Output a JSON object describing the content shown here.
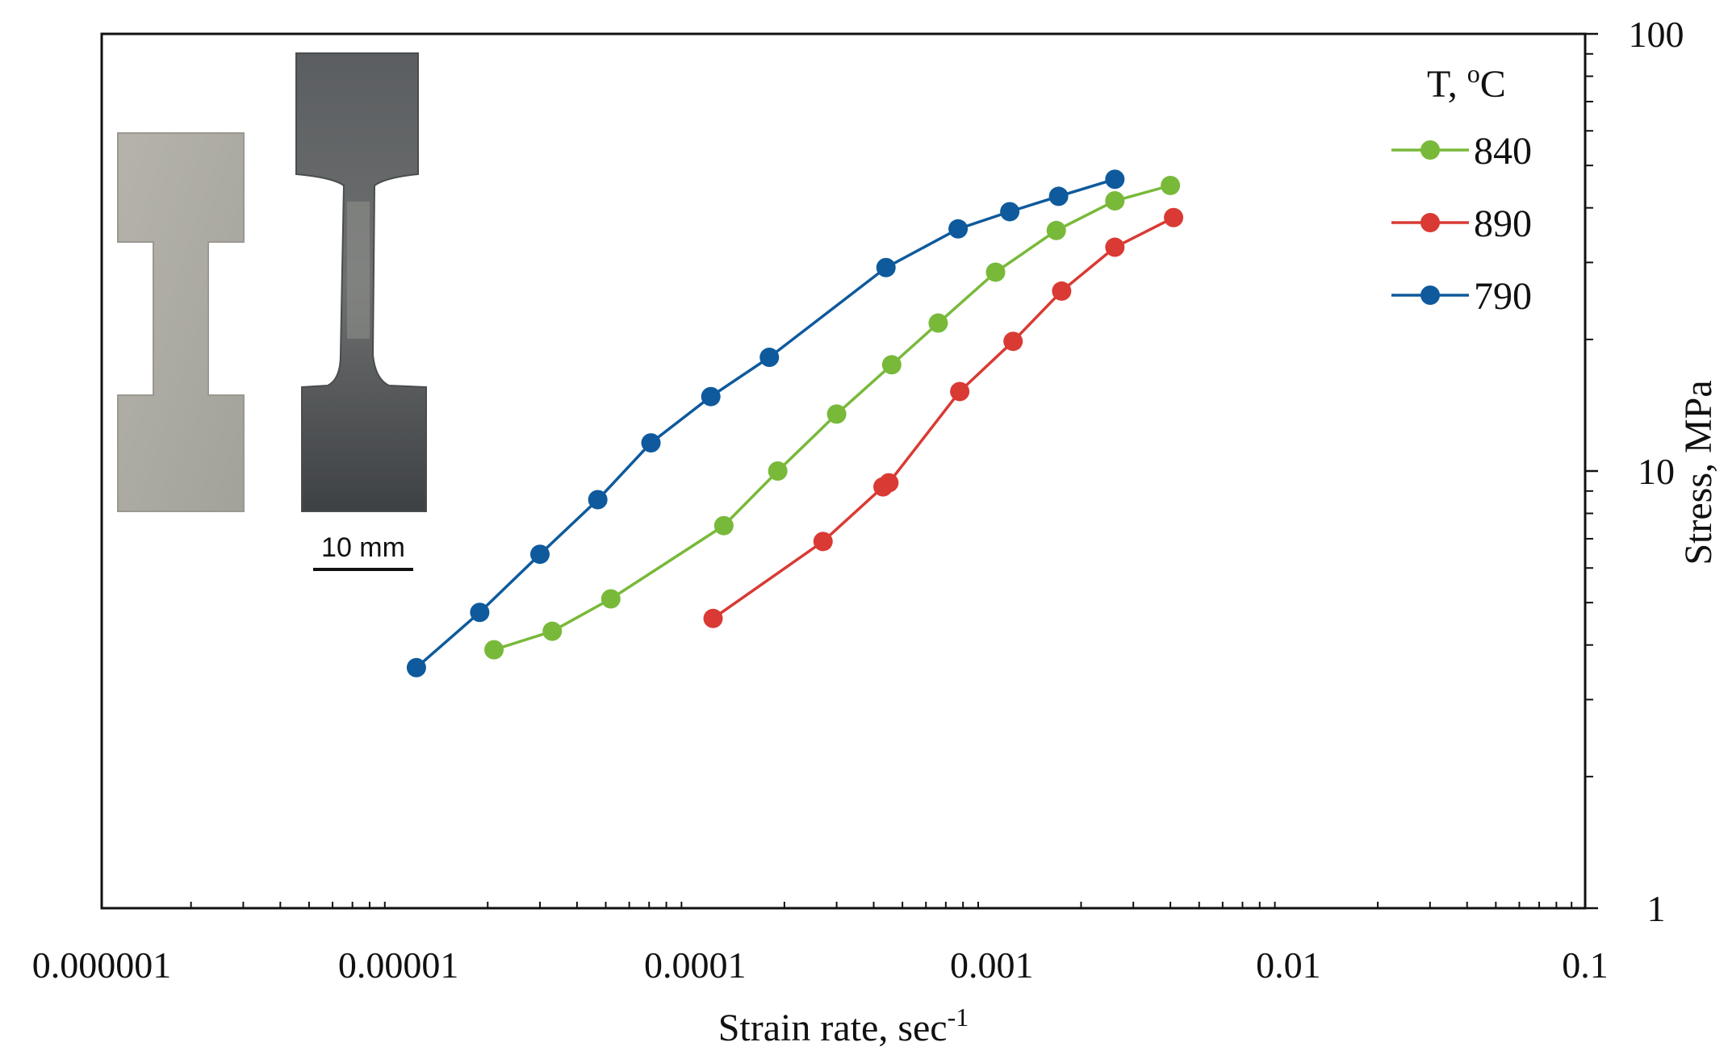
{
  "chart_data": {
    "type": "line",
    "title": "",
    "xlabel": "Strain rate, sec",
    "xlabel_superscript": "-1",
    "ylabel": "Stress, MPa",
    "x_scale": "log",
    "y_scale": "log",
    "xlim": [
      1e-06,
      0.1
    ],
    "ylim": [
      1,
      100
    ],
    "x_tick_labels": [
      "0.000001",
      "0.00001",
      "0.0001",
      "0.001",
      "0.01",
      "0.1"
    ],
    "y_tick_labels": [
      "1",
      "10",
      "100"
    ],
    "grid": false,
    "legend": {
      "title": "T, ",
      "title_superscript": "o",
      "title_unit": "C",
      "position": "top-right"
    },
    "inset": {
      "description_label": "10 mm",
      "position": "top-left"
    },
    "series": [
      {
        "name": "840",
        "color": "#79b93a",
        "points": [
          [
            2.1e-05,
            3.9
          ],
          [
            3.3e-05,
            4.3
          ],
          [
            5.2e-05,
            5.1
          ],
          [
            0.000125,
            7.5
          ],
          [
            0.00019,
            10.0
          ],
          [
            0.0003,
            13.5
          ],
          [
            0.00046,
            17.5
          ],
          [
            0.00066,
            21.8
          ],
          [
            0.00103,
            28.5
          ],
          [
            0.00165,
            35.5
          ],
          [
            0.0026,
            41.5
          ],
          [
            0.004,
            45.0
          ]
        ]
      },
      {
        "name": "890",
        "color": "#d93a33",
        "points": [
          [
            0.000115,
            4.6
          ],
          [
            0.00027,
            6.9
          ],
          [
            0.00043,
            9.2
          ],
          [
            0.00045,
            9.4
          ],
          [
            0.00078,
            15.2
          ],
          [
            0.00118,
            19.8
          ],
          [
            0.00172,
            25.8
          ],
          [
            0.0026,
            32.5
          ],
          [
            0.0041,
            38.0
          ]
        ]
      },
      {
        "name": "790",
        "color": "#0e5a9c",
        "points": [
          [
            1.15e-05,
            3.55
          ],
          [
            1.88e-05,
            4.75
          ],
          [
            3e-05,
            6.45
          ],
          [
            4.7e-05,
            8.6
          ],
          [
            7.1e-05,
            11.6
          ],
          [
            0.000113,
            14.8
          ],
          [
            0.000178,
            18.2
          ],
          [
            0.00044,
            29.2
          ],
          [
            0.00077,
            35.8
          ],
          [
            0.00115,
            39.2
          ],
          [
            0.00168,
            42.5
          ],
          [
            0.0026,
            46.5
          ]
        ]
      }
    ]
  }
}
